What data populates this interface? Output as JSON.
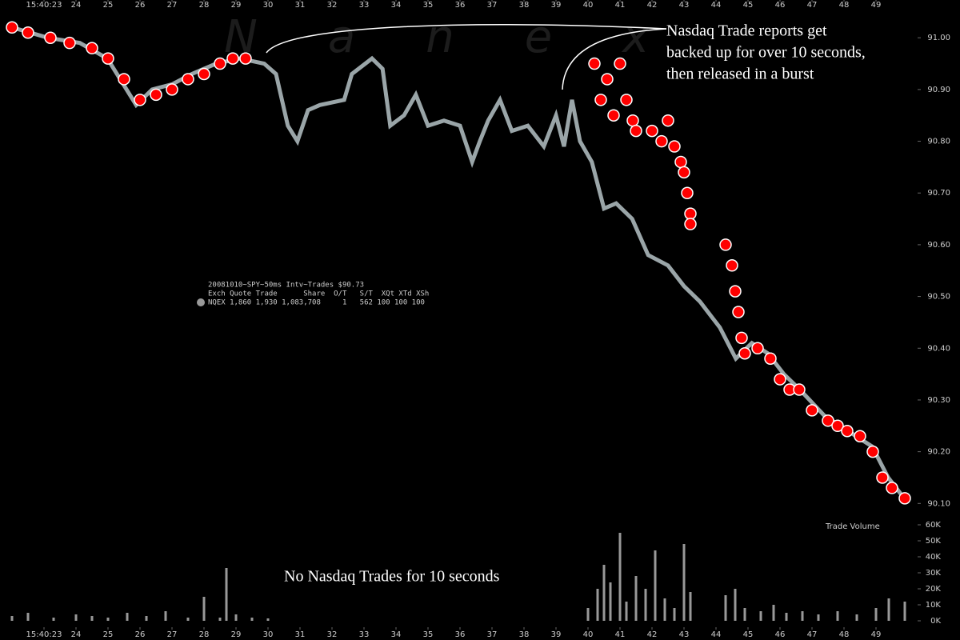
{
  "chart_data": [
    {
      "type": "line",
      "annotations": [
        "Nasdaq Trade reports get",
        "backed up for over 10 seconds,",
        "then released in a burst",
        "No Nasdaq Trades for 10 seconds"
      ],
      "watermark": "Nanex",
      "info_box": {
        "title": "20081010~SPY~50ms Intv~Trades $90.73",
        "header": "Exch Quote Trade      Share  O/T   S/T  XQt XTd XSh",
        "row": "NQEX 1,860 1,930 1,083,708     1   562 100 100 100"
      },
      "xlim": [
        21.625,
        50.25
      ],
      "ylim": [
        90.068,
        91.073
      ],
      "xticks": [
        {
          "value": 23,
          "label": "15:40:23"
        },
        24,
        25,
        26,
        27,
        28,
        29,
        30,
        31,
        32,
        33,
        34,
        35,
        36,
        37,
        38,
        39,
        40,
        41,
        42,
        43,
        44,
        45,
        46,
        47,
        48,
        49
      ],
      "yticks": [
        {
          "value": 90.1,
          "label": "90.10"
        },
        {
          "value": 90.2,
          "label": "90.20"
        },
        {
          "value": 90.3,
          "label": "90.30"
        },
        {
          "value": 90.4,
          "label": "90.40"
        },
        {
          "value": 90.5,
          "label": "90.50"
        },
        {
          "value": 90.6,
          "label": "90.60"
        },
        {
          "value": 90.7,
          "label": "90.70"
        },
        {
          "value": 90.8,
          "label": "90.80"
        },
        {
          "value": 90.9,
          "label": "90.90"
        },
        {
          "value": 91,
          "label": "91.00"
        }
      ],
      "x": [
        22.0,
        23.12,
        24.12,
        24.98,
        25.38,
        25.88,
        26.38,
        27.0,
        27.62,
        28.38,
        29.12,
        29.88,
        30.25,
        30.62,
        30.92,
        31.25,
        31.62,
        32.38,
        32.62,
        33.25,
        33.58,
        33.82,
        34.25,
        34.62,
        35.0,
        35.5,
        36.0,
        36.38,
        36.62,
        36.88,
        37.25,
        37.62,
        38.12,
        38.62,
        39.0,
        39.25,
        39.5,
        39.75,
        40.12,
        40.5,
        40.88,
        41.38,
        41.88,
        42.5,
        43.0,
        43.5,
        44.12,
        44.62,
        45.12,
        45.62,
        46.12,
        46.62,
        47.38,
        47.88,
        48.38,
        48.88,
        49.38,
        49.88
      ],
      "series": [
        {
          "color": "#9aa5a8",
          "values": [
            91.02,
            91.0,
            90.99,
            90.96,
            90.92,
            90.87,
            90.9,
            90.91,
            90.93,
            90.95,
            90.96,
            90.95,
            90.93,
            90.83,
            90.8,
            90.86,
            90.87,
            90.88,
            90.93,
            90.96,
            90.94,
            90.83,
            90.85,
            90.89,
            90.83,
            90.84,
            90.83,
            90.76,
            90.8,
            90.84,
            90.88,
            90.82,
            90.83,
            90.79,
            90.85,
            90.79,
            90.88,
            90.8,
            90.76,
            90.67,
            90.68,
            90.65,
            90.58,
            90.56,
            90.52,
            90.49,
            90.44,
            90.38,
            90.41,
            90.39,
            90.35,
            90.32,
            90.27,
            90.25,
            90.23,
            90.21,
            90.15,
            90.11
          ]
        }
      ]
    },
    {
      "type": "scatter",
      "xlim": [
        21.625,
        50.25
      ],
      "ylim": [
        90.068,
        91.073
      ],
      "x": [
        22.0,
        22.5,
        23.2,
        23.8,
        24.5,
        25.0,
        25.5,
        26.0,
        26.5,
        27.0,
        27.5,
        28.0,
        28.5,
        28.9,
        29.3,
        40.2,
        40.4,
        40.6,
        40.8,
        41.0,
        41.2,
        41.4,
        41.5,
        42.0,
        42.3,
        42.5,
        42.7,
        42.9,
        43.0,
        43.1,
        43.2,
        43.2,
        44.3,
        44.5,
        44.6,
        44.7,
        44.8,
        44.9,
        45.3,
        45.7,
        46.0,
        46.3,
        46.6,
        47.0,
        47.5,
        47.8,
        48.1,
        48.5,
        48.9,
        49.2,
        49.5,
        49.9
      ],
      "series": [
        {
          "color": "#ff0000",
          "values": [
            91.02,
            91.01,
            91.0,
            90.99,
            90.98,
            90.96,
            90.92,
            90.88,
            90.89,
            90.9,
            90.92,
            90.93,
            90.95,
            90.96,
            90.96,
            90.95,
            90.88,
            90.92,
            90.85,
            90.95,
            90.88,
            90.84,
            90.82,
            90.82,
            90.8,
            90.84,
            90.79,
            90.76,
            90.74,
            90.7,
            90.66,
            90.64,
            90.6,
            90.56,
            90.51,
            90.47,
            90.42,
            90.39,
            90.4,
            90.38,
            90.34,
            90.32,
            90.32,
            90.28,
            90.26,
            90.25,
            90.24,
            90.23,
            90.2,
            90.15,
            90.13,
            90.11
          ]
        }
      ]
    },
    {
      "type": "bar",
      "title": "Trade Volume",
      "xlim": [
        21.625,
        50.25
      ],
      "ylim": [
        0,
        62000
      ],
      "xticks": [
        {
          "value": 23,
          "label": "15:40:23"
        },
        24,
        25,
        26,
        27,
        28,
        29,
        30,
        31,
        32,
        33,
        34,
        35,
        36,
        37,
        38,
        39,
        40,
        41,
        42,
        43,
        44,
        45,
        46,
        47,
        48,
        49
      ],
      "yticks": [
        {
          "value": 0,
          "label": "0K"
        },
        {
          "value": 10000,
          "label": "10K"
        },
        {
          "value": 20000,
          "label": "20K"
        },
        {
          "value": 30000,
          "label": "30K"
        },
        {
          "value": 40000,
          "label": "40K"
        },
        {
          "value": 50000,
          "label": "50K"
        },
        {
          "value": 60000,
          "label": "60K"
        }
      ],
      "x": [
        22.0,
        22.5,
        23.3,
        24.0,
        24.5,
        25.0,
        25.6,
        26.2,
        26.8,
        27.5,
        28.0,
        28.5,
        28.7,
        29.0,
        29.5,
        30.0,
        40.0,
        40.3,
        40.5,
        40.7,
        41.0,
        41.2,
        41.5,
        41.8,
        42.1,
        42.4,
        42.7,
        43.0,
        43.2,
        44.3,
        44.6,
        44.9,
        45.4,
        45.8,
        46.2,
        46.7,
        47.2,
        47.8,
        48.4,
        49.0,
        49.4,
        49.9
      ],
      "color": "#999999",
      "values": [
        3000,
        5000,
        2000,
        4000,
        3000,
        2000,
        5000,
        3000,
        6000,
        2000,
        15000,
        2000,
        33000,
        4000,
        2000,
        1500,
        8000,
        20000,
        35000,
        24000,
        55000,
        12000,
        28000,
        20000,
        44000,
        14000,
        8000,
        48000,
        18000,
        16000,
        20000,
        8000,
        6000,
        10000,
        5000,
        6000,
        4000,
        6000,
        4000,
        8000,
        14000,
        12000
      ]
    }
  ]
}
